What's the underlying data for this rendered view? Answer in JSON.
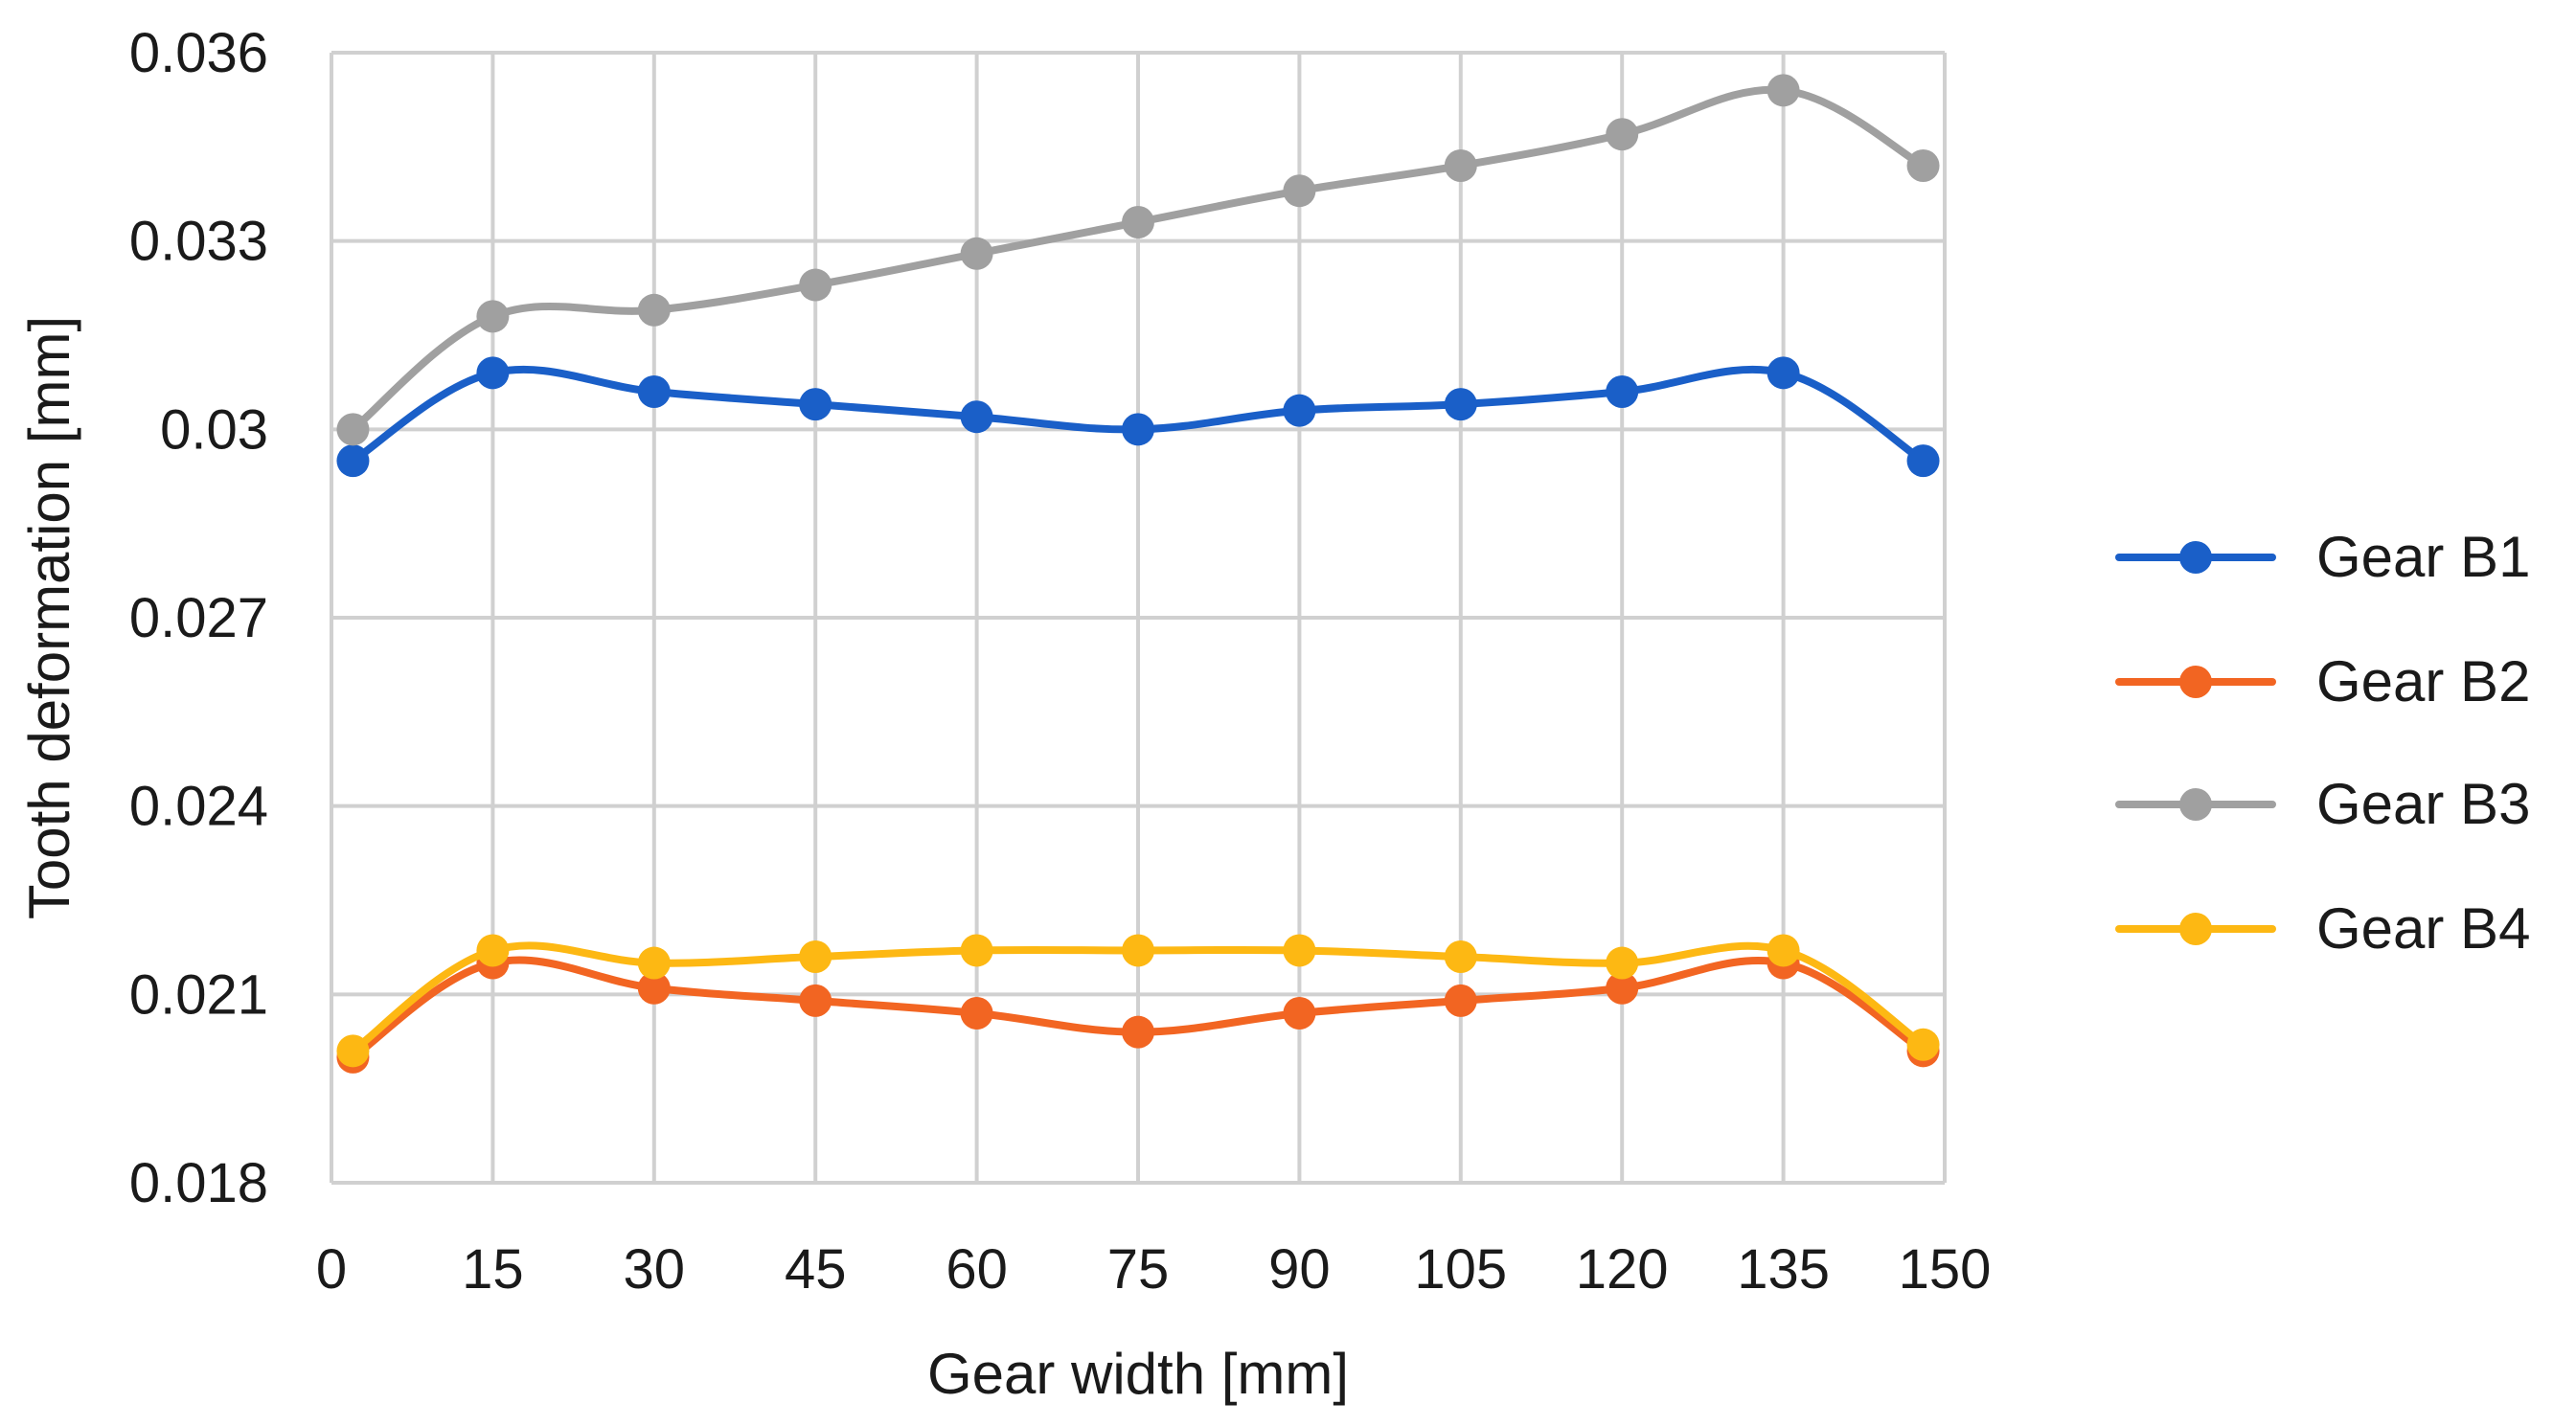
{
  "chart_data": {
    "type": "line",
    "title": "",
    "xlabel": "Gear width [mm]",
    "ylabel": "Tooth deformation [mm]",
    "xlim": [
      0,
      150
    ],
    "ylim": [
      0.018,
      0.036
    ],
    "x_ticks": [
      "0",
      "15",
      "30",
      "45",
      "60",
      "75",
      "90",
      "105",
      "120",
      "135",
      "150"
    ],
    "y_ticks": [
      "0.018",
      "0.021",
      "0.024",
      "0.027",
      "0.03",
      "0.033",
      "0.036"
    ],
    "x": [
      2,
      15,
      30,
      45,
      60,
      75,
      90,
      105,
      120,
      135,
      148
    ],
    "grid": true,
    "legend_position": "right",
    "series": [
      {
        "name": "Gear B1",
        "color": "#1a5fc8",
        "values": [
          0.0295,
          0.0309,
          0.0306,
          0.0304,
          0.0302,
          0.03,
          0.0303,
          0.0304,
          0.0306,
          0.0309,
          0.0295
        ]
      },
      {
        "name": "Gear B2",
        "color": "#f26522",
        "values": [
          0.02,
          0.0215,
          0.0211,
          0.0209,
          0.0207,
          0.0204,
          0.0207,
          0.0209,
          0.0211,
          0.0215,
          0.0201
        ]
      },
      {
        "name": "Gear B3",
        "color": "#a0a0a0",
        "values": [
          0.03,
          0.0318,
          0.0319,
          0.0323,
          0.0328,
          0.0333,
          0.0338,
          0.0342,
          0.0347,
          0.0354,
          0.0342
        ]
      },
      {
        "name": "Gear B4",
        "color": "#fdb813",
        "values": [
          0.0201,
          0.0217,
          0.0215,
          0.0216,
          0.0217,
          0.0217,
          0.0217,
          0.0216,
          0.0215,
          0.0217,
          0.0202
        ]
      }
    ]
  }
}
